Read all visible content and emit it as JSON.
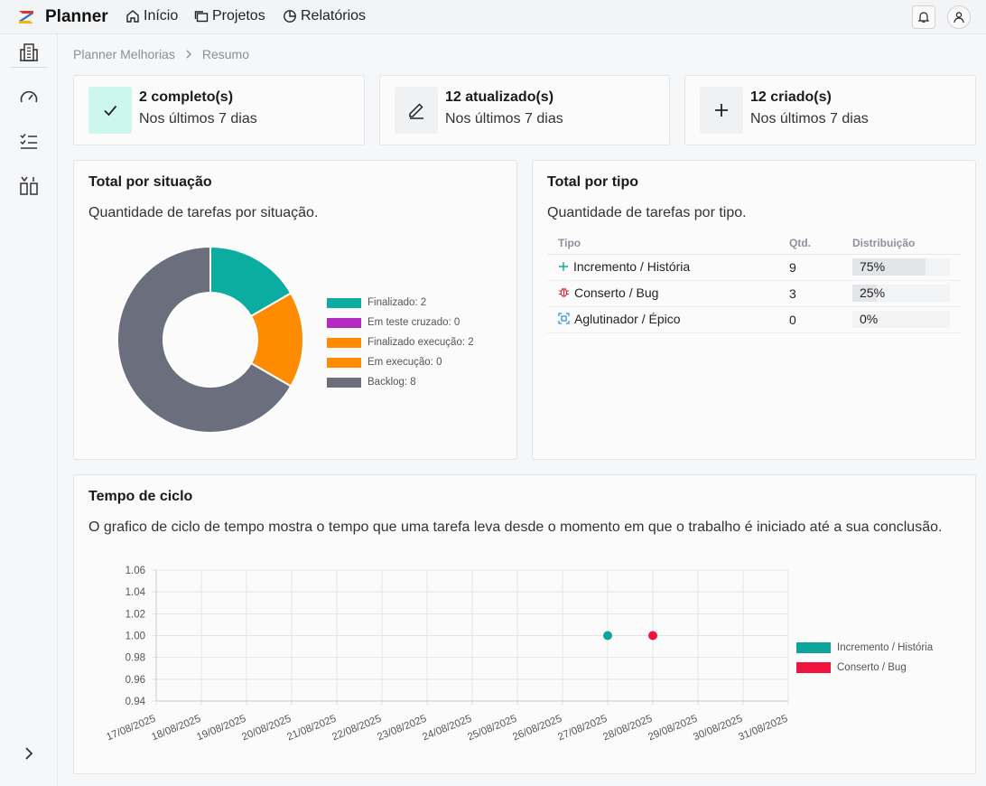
{
  "app": {
    "name": "Planner"
  },
  "nav": [
    {
      "label": "Início",
      "icon": "home-icon"
    },
    {
      "label": "Projetos",
      "icon": "folders-icon"
    },
    {
      "label": "Relatórios",
      "icon": "pie-chart-icon"
    }
  ],
  "breadcrumb": {
    "project": "Planner Melhorias",
    "page": "Resumo"
  },
  "stats": [
    {
      "title": "2 completo(s)",
      "subtitle": "Nos últimos 7 dias",
      "icon": "check-icon",
      "bg": "#ccf7ee"
    },
    {
      "title": "12 atualizado(s)",
      "subtitle": "Nos últimos 7 dias",
      "icon": "edit-icon",
      "bg": "#f0f1f3"
    },
    {
      "title": "12 criado(s)",
      "subtitle": "Nos últimos 7 dias",
      "icon": "plus-icon",
      "bg": "#f0f1f3"
    }
  ],
  "status_panel": {
    "title": "Total por situação",
    "description": "Quantidade de tarefas por situação."
  },
  "type_panel": {
    "title": "Total por tipo",
    "description": "Quantidade de tarefas por tipo.",
    "headers": [
      "Tipo",
      "Qtd.",
      "Distribuição"
    ],
    "rows": [
      {
        "label": "Incremento / História",
        "qty": "9",
        "dist": "75%",
        "fraction": 0.75,
        "icon": "plus-icon"
      },
      {
        "label": "Conserto / Bug",
        "qty": "3",
        "dist": "25%",
        "fraction": 0.25,
        "icon": "bug-icon"
      },
      {
        "label": "Aglutinador / Épico",
        "qty": "0",
        "dist": "0%",
        "fraction": 0.0,
        "icon": "epic-icon"
      }
    ]
  },
  "cycle_panel": {
    "title": "Tempo de ciclo",
    "description": "O grafico de ciclo de tempo mostra o tempo que uma tarefa leva desde o momento em que o trabalho é iniciado até a sua conclusão."
  },
  "chart_data": [
    {
      "type": "pie",
      "variant": "donut",
      "categories": [
        "Finalizado: 2",
        "Em teste cruzado: 0",
        "Finalizado execução: 2",
        "Em execução: 0",
        "Backlog: 8"
      ],
      "values": [
        2,
        0,
        2,
        0,
        8
      ],
      "colors": [
        "#0cada1",
        "#b42bc4",
        "#ff8c00",
        "#ff8c00",
        "#6b6e7d"
      ],
      "legend": "right"
    },
    {
      "type": "scatter",
      "x_categories": [
        "17/08/2025",
        "18/08/2025",
        "19/08/2025",
        "20/08/2025",
        "21/08/2025",
        "22/08/2025",
        "23/08/2025",
        "24/08/2025",
        "25/08/2025",
        "26/08/2025",
        "27/08/2025",
        "28/08/2025",
        "29/08/2025",
        "30/08/2025",
        "31/08/2025"
      ],
      "y_ticks": [
        "0.94",
        "0.96",
        "0.98",
        "1.00",
        "1.02",
        "1.04",
        "1.06"
      ],
      "ylim": [
        0.94,
        1.06
      ],
      "series": [
        {
          "name": "Incremento / História",
          "color": "#0da59b",
          "points": [
            {
              "x": "27/08/2025",
              "y": 1.0
            }
          ]
        },
        {
          "name": "Conserto / Bug",
          "color": "#f0143e",
          "points": [
            {
              "x": "28/08/2025",
              "y": 1.0
            }
          ]
        }
      ],
      "grid": true,
      "legend": "right"
    }
  ]
}
